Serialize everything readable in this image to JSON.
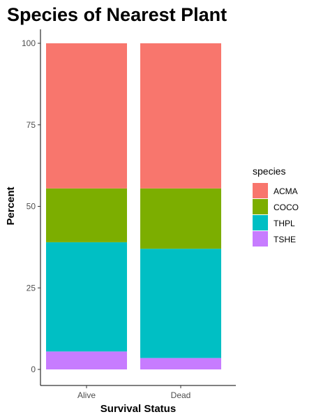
{
  "chart_data": {
    "type": "bar",
    "stacked": true,
    "title": "Species of Nearest Plant",
    "xlabel": "Survival Status",
    "ylabel": "Percent",
    "categories": [
      "Alive",
      "Dead"
    ],
    "ylim": [
      0,
      100
    ],
    "yticks": [
      "0",
      "25",
      "50",
      "75",
      "100"
    ],
    "legend": {
      "title": "species",
      "position": "right"
    },
    "series": [
      {
        "name": "ACMA",
        "color": "#F8766D",
        "values": [
          44.5,
          44.5
        ]
      },
      {
        "name": "COCO",
        "color": "#7CAE00",
        "values": [
          16.5,
          18.5
        ]
      },
      {
        "name": "THPL",
        "color": "#00BFC4",
        "values": [
          33.5,
          33.5
        ]
      },
      {
        "name": "TSHE",
        "color": "#C77CFF",
        "values": [
          5.5,
          3.5
        ]
      }
    ],
    "grid": false
  }
}
